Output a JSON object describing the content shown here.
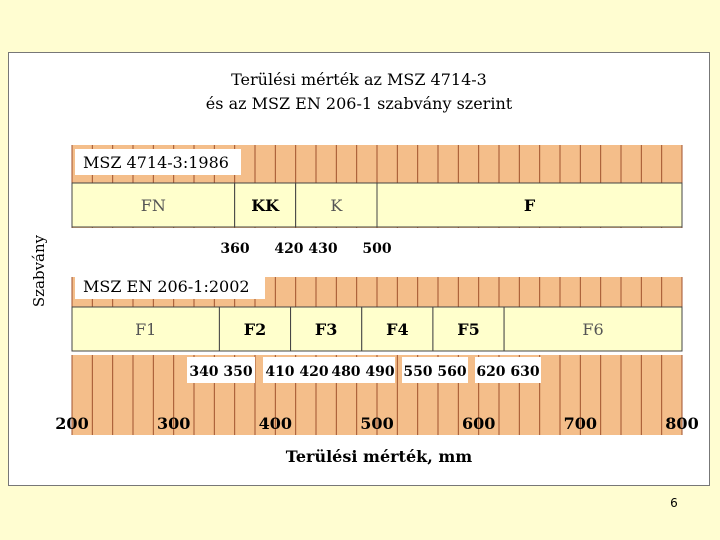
{
  "page_number": "6",
  "chart_data": {
    "type": "bar",
    "title_line1": "Terülési mérték az MSZ 4714-3",
    "title_line2": "és az MSZ EN 206-1 szabvány szerint",
    "xlabel": "Terülési mérték, mm",
    "ylabel": "Szabvány",
    "xlim": [
      200,
      800
    ],
    "x_ticks": [
      200,
      300,
      400,
      500,
      600,
      700,
      800
    ],
    "grid": "vertical, every 20 mm",
    "colors": {
      "grid_fill": "#f4be8a",
      "class_fill": "#ffffcc",
      "grid_line": "#a0522d"
    },
    "standards": [
      {
        "name": "MSZ 4714-3:1986",
        "classes": [
          {
            "label": "FN",
            "from": 200,
            "to": 360,
            "bold": false
          },
          {
            "label": "KK",
            "from": 360,
            "to": 420,
            "bold": true
          },
          {
            "label": "K",
            "from": 420,
            "to": 500,
            "bold": false
          },
          {
            "label": "F",
            "from": 500,
            "to": 800,
            "bold": true
          }
        ],
        "boundary_labels": [
          "360",
          "420 430",
          "500"
        ]
      },
      {
        "name": "MSZ EN 206-1:2002",
        "classes": [
          {
            "label": "F1",
            "from": 200,
            "to": 345,
            "bold": false
          },
          {
            "label": "F2",
            "from": 345,
            "to": 415,
            "bold": true
          },
          {
            "label": "F3",
            "from": 415,
            "to": 485,
            "bold": true
          },
          {
            "label": "F4",
            "from": 485,
            "to": 555,
            "bold": true
          },
          {
            "label": "F5",
            "from": 555,
            "to": 625,
            "bold": true
          },
          {
            "label": "F6",
            "from": 625,
            "to": 800,
            "bold": false
          }
        ],
        "boundary_labels": [
          "340 350",
          "410 420",
          "480 490",
          "550 560",
          "620 630"
        ]
      }
    ]
  }
}
